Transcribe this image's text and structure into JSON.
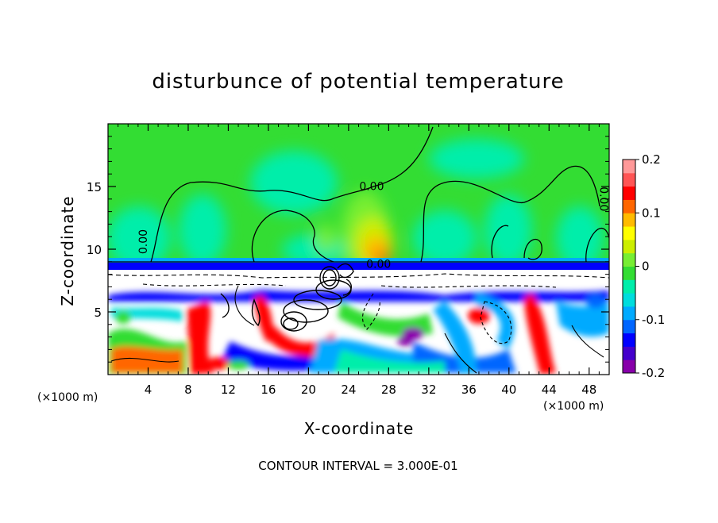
{
  "chart_data": {
    "type": "heatmap",
    "title": "disturbunce of potential temperature",
    "xlabel": "X-coordinate",
    "ylabel": "Z-coordinate",
    "x_unit": "(×1000 m)",
    "x_unit_right": "(×1000 m)",
    "xlim": [
      0,
      50
    ],
    "ylim": [
      0,
      20
    ],
    "xticks": [
      4,
      8,
      12,
      16,
      20,
      24,
      28,
      32,
      36,
      40,
      44,
      48
    ],
    "yticks": [
      5,
      10,
      15
    ],
    "colorbar": {
      "range": [
        -0.2,
        0.2
      ],
      "ticks": [
        {
          "value": 0.2,
          "label": "0.2"
        },
        {
          "value": 0.1,
          "label": "0.1"
        },
        {
          "value": 0,
          "label": "0"
        },
        {
          "value": -0.1,
          "label": "-0.1"
        },
        {
          "value": -0.2,
          "label": "-0.2"
        }
      ],
      "colors": [
        "#8800aa",
        "#4400cc",
        "#0000ff",
        "#0066ff",
        "#00aaff",
        "#00dddd",
        "#00eeaa",
        "#33dd33",
        "#77ee33",
        "#ccee00",
        "#ffff00",
        "#ffbb00",
        "#ff6600",
        "#ff0000",
        "#ff5555",
        "#ff9999"
      ]
    },
    "contour_labels": [
      {
        "text": "0.00",
        "x": 26.3,
        "y": 14.7
      },
      {
        "text": "0.00",
        "x": 3.9,
        "y": 10.6
      },
      {
        "text": "0.00",
        "x": 27.0,
        "y": 8.5
      },
      {
        "text": "0.00",
        "x": 49.1,
        "y": 14.0
      }
    ],
    "note": "CONTOUR INTERVAL = 3.000E-01"
  }
}
